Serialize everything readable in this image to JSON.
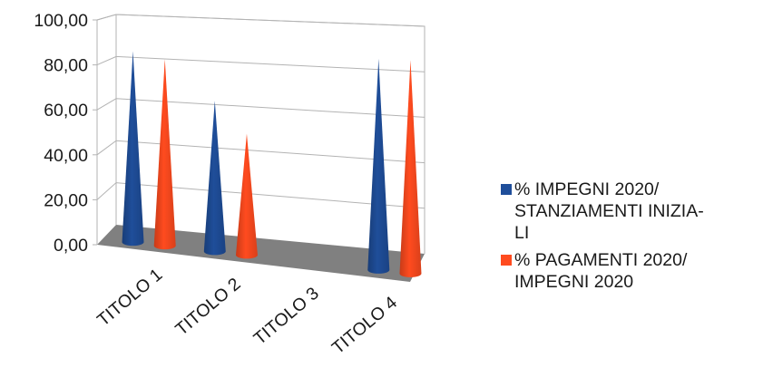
{
  "chart_data": {
    "type": "bar",
    "style": "3d-cone",
    "categories": [
      "TITOLO 1",
      "TITOLO 2",
      "TITOLO 3",
      "TITOLO 4"
    ],
    "series": [
      {
        "name": "% IMPEGNI 2020/\nSTANZIAMENTI INIZIA-\nLI",
        "color": "#1f4e9a",
        "values": [
          85,
          67,
          0,
          94
        ]
      },
      {
        "name": "% PAGAMENTI 2020/\nIMPEGNI 2020",
        "color": "#ff4b1f",
        "values": [
          83,
          54,
          0,
          95
        ]
      }
    ],
    "yticks": [
      "0,00",
      "20,00",
      "40,00",
      "60,00",
      "80,00",
      "100,00"
    ],
    "ylim": [
      0,
      100
    ],
    "grid": true,
    "legend_position": "right"
  }
}
